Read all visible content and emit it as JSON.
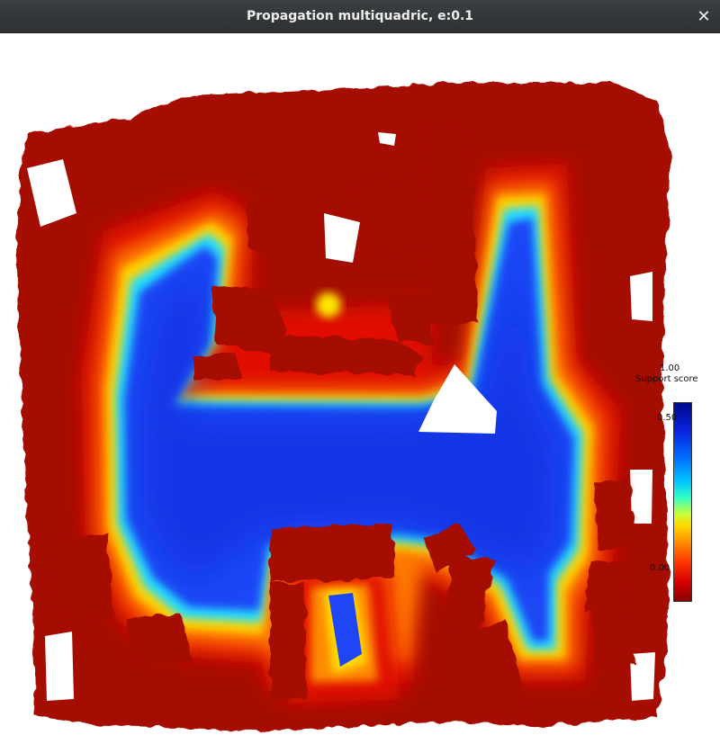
{
  "window": {
    "title": "Propagation multiquadric, e:0.1",
    "close_glyph": "✕",
    "close_icon": "close-icon"
  },
  "legend": {
    "title": "Support score",
    "ticks": [
      "1.00",
      "0.50",
      "0.00"
    ],
    "colormap": "jet",
    "min_color": "#8b0000",
    "max_color": "#000a8b"
  },
  "render": {
    "wall_color": "#a80c00",
    "free_space_color": "#1e4dff",
    "background": "#ffffff"
  }
}
